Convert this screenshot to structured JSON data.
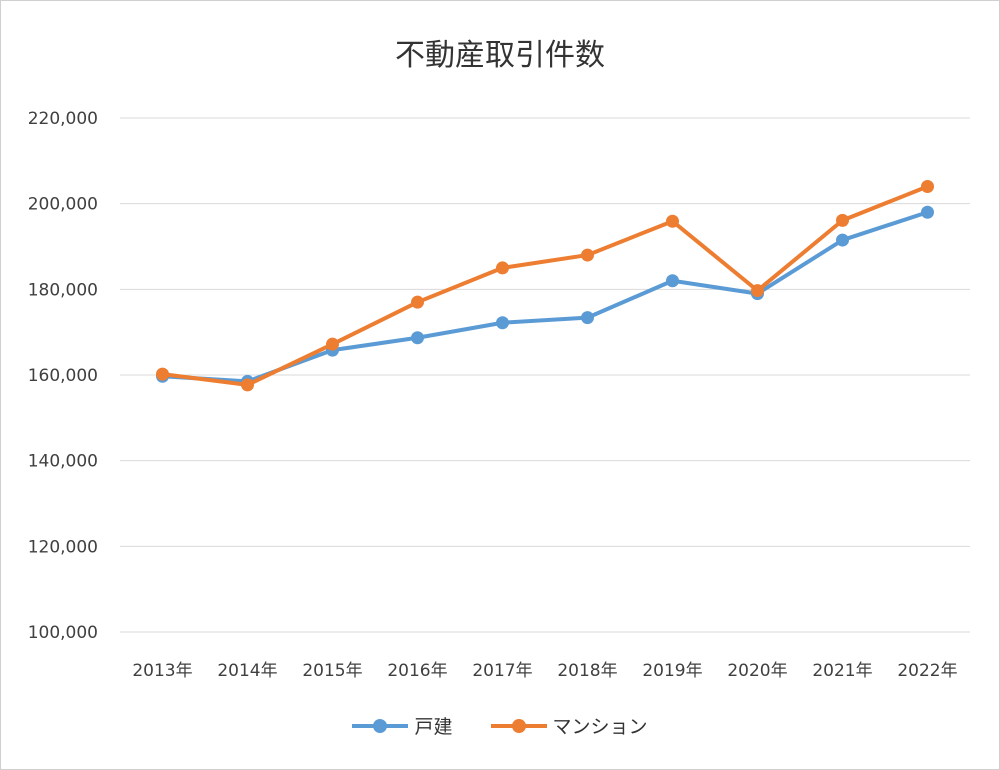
{
  "chart_data": {
    "type": "line",
    "title": "不動産取引件数",
    "categories": [
      "2013年",
      "2014年",
      "2015年",
      "2016年",
      "2017年",
      "2018年",
      "2019年",
      "2020年",
      "2021年",
      "2022年"
    ],
    "ylim": [
      100000,
      220000
    ],
    "yticks": [
      220000,
      200000,
      180000,
      160000,
      140000,
      120000,
      100000
    ],
    "ytick_labels": [
      "220,000",
      "200,000",
      "180,000",
      "160,000",
      "140,000",
      "120,000",
      "100,000"
    ],
    "grid": true,
    "legend_position": "bottom",
    "series": [
      {
        "name": "戸建",
        "color": "#5B9BD5",
        "values": [
          159700,
          158500,
          165800,
          168700,
          172200,
          173400,
          182000,
          179000,
          191500,
          198000
        ]
      },
      {
        "name": "マンション",
        "color": "#ED7D31",
        "values": [
          160200,
          157700,
          167200,
          177000,
          185000,
          188000,
          195900,
          179700,
          196100,
          204000
        ]
      }
    ]
  }
}
